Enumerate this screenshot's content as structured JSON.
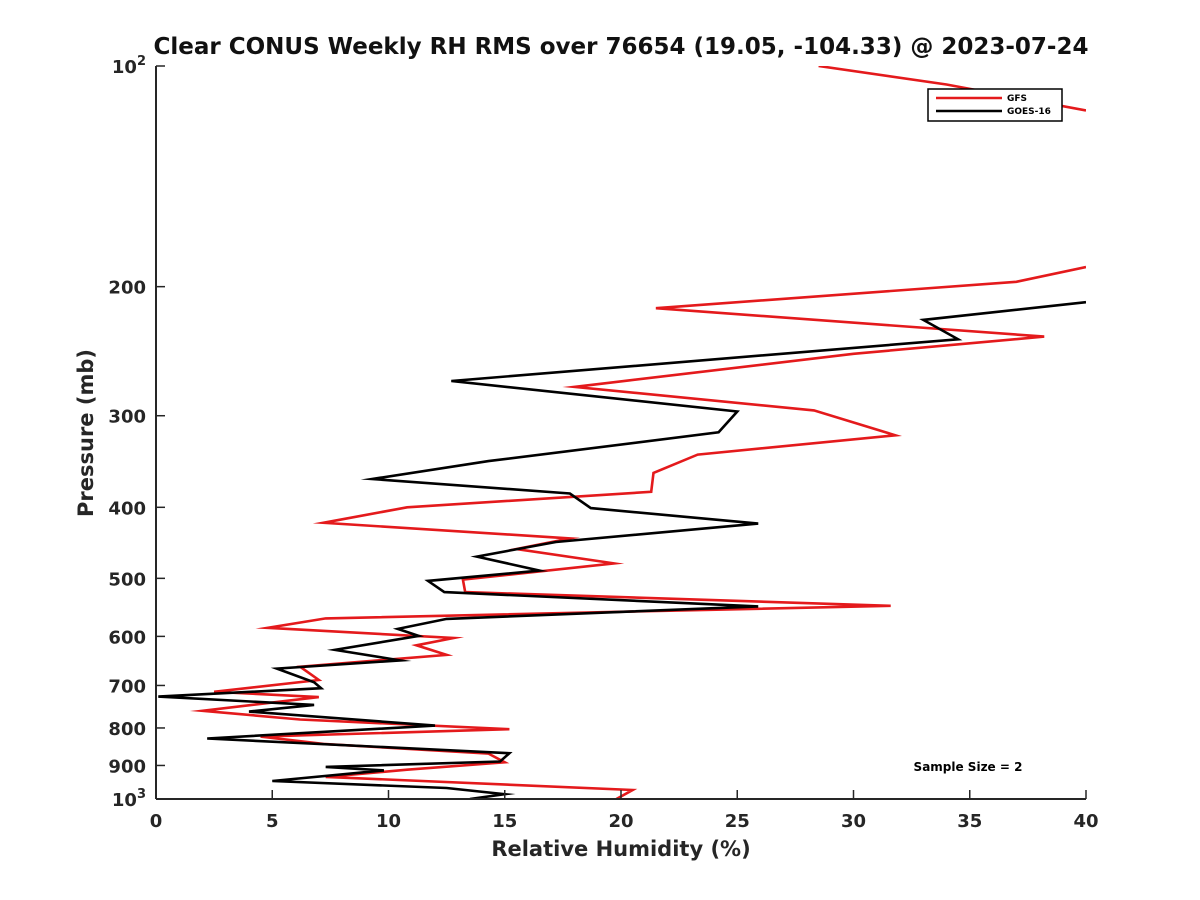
{
  "chart_data": {
    "type": "line",
    "title": "Clear CONUS Weekly RH RMS over 76654 (19.05, -104.33) @ 2023-07-24",
    "xlabel": "Relative Humidity (%)",
    "ylabel": "Pressure (mb)",
    "xlim": [
      0,
      40
    ],
    "ylim": [
      100,
      1000
    ],
    "yscale": "log",
    "y_reversed": true,
    "grid": false,
    "legend_position": "top-right",
    "x_ticks": [
      0,
      5,
      10,
      15,
      20,
      25,
      30,
      35,
      40
    ],
    "x_tick_labels": [
      "0",
      "5",
      "10",
      "15",
      "20",
      "25",
      "30",
      "35",
      "40"
    ],
    "y_ticks": [
      {
        "value": 100,
        "base": "10",
        "exp": "2"
      },
      {
        "value": 200,
        "label": "200"
      },
      {
        "value": 300,
        "label": "300"
      },
      {
        "value": 400,
        "label": "400"
      },
      {
        "value": 500,
        "label": "500"
      },
      {
        "value": 600,
        "label": "600"
      },
      {
        "value": 700,
        "label": "700"
      },
      {
        "value": 800,
        "label": "800"
      },
      {
        "value": 900,
        "label": "900"
      },
      {
        "value": 1000,
        "base": "10",
        "exp": "3"
      }
    ],
    "annotation": "Sample Size = 2",
    "series": [
      {
        "name": "GFS",
        "color": "#e41a1c",
        "segments": [
          {
            "x": [
              28.5,
              34,
              40
            ],
            "y": [
              100,
              106,
              115
            ]
          },
          {
            "x": [
              40,
              37,
              21.5,
              38.2,
              30,
              18,
              28.3,
              31.8,
              23.3,
              21.4,
              21.3,
              10.8,
              7.2,
              17.8,
              15.5,
              19.7,
              13.2,
              13.3,
              31.6,
              7.3,
              4.8,
              12.8,
              11.2,
              12.5,
              6.2,
              7,
              2.5,
              7,
              2,
              6.2,
              15.2,
              4.5,
              7.2,
              14.3,
              15,
              10.8,
              7.3,
              20.5,
              19.8
            ],
            "y": [
              188,
              197,
              214,
              234,
              247,
              274,
              295,
              319,
              339,
              359,
              381,
              400,
              420,
              441,
              456,
              477,
              502,
              522,
              545,
              567,
              584,
              603,
              617,
              636,
              660,
              688,
              714,
              726,
              758,
              779,
              803,
              822,
              841,
              867,
              891,
              912,
              933,
              972,
              1000
            ]
          }
        ]
      },
      {
        "name": "GOES-16",
        "color": "#000000",
        "segments": [
          {
            "x": [
              40,
              33,
              34.5,
              12.7,
              25,
              24.2,
              14.3,
              9.3,
              17.8,
              18.7,
              25.9,
              17.2,
              13.8,
              16.5,
              11.7,
              12.4,
              25.9,
              12.5,
              10.4,
              11.3,
              7.7,
              10.5,
              5.2,
              6.8,
              7.1,
              0.1,
              6.8,
              4,
              12,
              2.2,
              15.2,
              14.8,
              7.3,
              9.8,
              5,
              12.5,
              15,
              13.5
            ],
            "y": [
              210,
              222,
              236,
              269,
              296,
              316,
              346,
              366,
              383,
              401,
              421,
              446,
              467,
              488,
              504,
              522,
              546,
              568,
              586,
              599,
              626,
              647,
              664,
              693,
              706,
              725,
              744,
              760,
              794,
              827,
              866,
              889,
              904,
              914,
              945,
              966,
              985,
              1000
            ]
          }
        ]
      }
    ]
  }
}
